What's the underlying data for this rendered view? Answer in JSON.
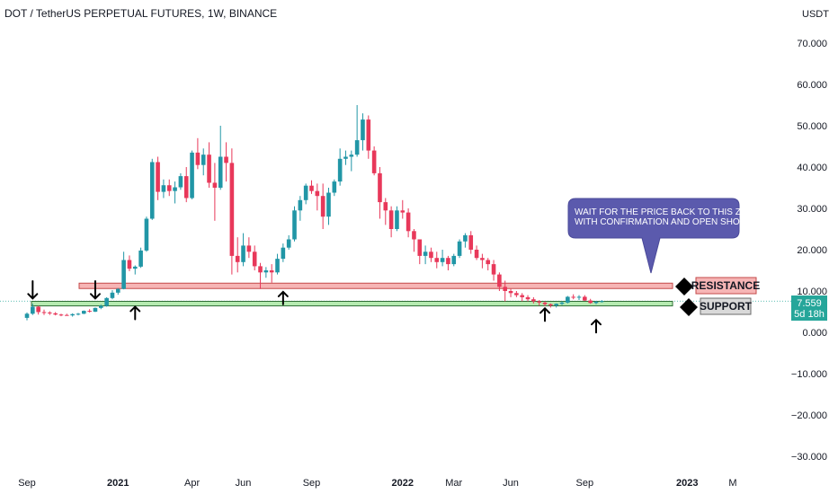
{
  "chart_data": {
    "type": "candlestick",
    "title": "DOT / TetherUS PERPETUAL FUTURES, 1W, BINANCE",
    "currency": "USDT",
    "ylim": [
      -32,
      78
    ],
    "y_ticks": [
      "70.000",
      "60.000",
      "50.000",
      "40.000",
      "30.000",
      "20.000",
      "10.000",
      "0.000",
      "−10.000",
      "−20.000",
      "−30.000"
    ],
    "y_tick_values": [
      70,
      60,
      50,
      40,
      30,
      20,
      10,
      0,
      -10,
      -20,
      -30
    ],
    "x_ticks": [
      "Sep",
      "2021",
      "Apr",
      "Jun",
      "Sep",
      "2022",
      "Mar",
      "Jun",
      "Sep",
      "2023",
      "M"
    ],
    "x_tick_weeks": [
      0,
      16,
      29,
      38,
      50,
      66,
      75,
      85,
      98,
      116,
      124
    ],
    "x_tick_bold": [
      false,
      true,
      false,
      false,
      false,
      true,
      false,
      false,
      false,
      true,
      false
    ],
    "up_color": "#2196a6",
    "down_color": "#e8385a",
    "candles": [
      [
        3.5,
        4.8,
        2.9,
        4.5
      ],
      [
        4.5,
        6.9,
        4.2,
        6.2
      ],
      [
        6.2,
        6.4,
        4.3,
        4.9
      ],
      [
        4.9,
        5.5,
        4.2,
        4.8
      ],
      [
        4.8,
        5.1,
        4.2,
        4.6
      ],
      [
        4.6,
        4.9,
        4.1,
        4.3
      ],
      [
        4.3,
        4.5,
        3.9,
        4.2
      ],
      [
        4.2,
        4.5,
        4.0,
        4.1
      ],
      [
        4.1,
        4.6,
        3.8,
        4.4
      ],
      [
        4.4,
        4.7,
        4.1,
        4.5
      ],
      [
        4.5,
        5.3,
        4.4,
        5.2
      ],
      [
        5.2,
        5.6,
        4.8,
        5.0
      ],
      [
        5.0,
        6.0,
        4.9,
        5.9
      ],
      [
        5.9,
        6.7,
        5.6,
        6.4
      ],
      [
        6.4,
        8.5,
        6.2,
        8.3
      ],
      [
        8.3,
        10.2,
        8.0,
        9.6
      ],
      [
        9.6,
        10.7,
        9.1,
        10.5
      ],
      [
        10.5,
        19.5,
        10.4,
        17.5
      ],
      [
        17.5,
        18.6,
        14.8,
        15.4
      ],
      [
        15.4,
        16.2,
        14.0,
        15.9
      ],
      [
        15.9,
        20.5,
        15.6,
        19.8
      ],
      [
        19.8,
        28.0,
        19.5,
        27.5
      ],
      [
        27.5,
        42.0,
        27.2,
        41.2
      ],
      [
        41.2,
        42.5,
        32.0,
        34.0
      ],
      [
        34.0,
        37.0,
        32.5,
        35.6
      ],
      [
        35.6,
        37.0,
        33.0,
        34.2
      ],
      [
        34.2,
        36.5,
        31.2,
        35.1
      ],
      [
        35.1,
        38.5,
        34.5,
        37.8
      ],
      [
        37.8,
        40.0,
        31.5,
        32.5
      ],
      [
        32.5,
        44.0,
        32.2,
        43.5
      ],
      [
        43.5,
        47.0,
        39.5,
        40.5
      ],
      [
        40.5,
        44.5,
        38.0,
        43.0
      ],
      [
        43.0,
        46.0,
        35.0,
        36.2
      ],
      [
        36.2,
        41.0,
        27.0,
        35.0
      ],
      [
        35.0,
        50.0,
        34.5,
        42.5
      ],
      [
        42.5,
        46.0,
        36.5,
        41.0
      ],
      [
        41.0,
        44.5,
        14.0,
        18.5
      ],
      [
        18.5,
        23.0,
        14.5,
        17.0
      ],
      [
        17.0,
        24.0,
        16.0,
        21.0
      ],
      [
        21.0,
        23.0,
        18.0,
        19.5
      ],
      [
        19.5,
        21.0,
        15.0,
        16.0
      ],
      [
        16.0,
        16.8,
        10.5,
        14.5
      ],
      [
        14.5,
        15.8,
        13.2,
        15.0
      ],
      [
        15.0,
        16.5,
        12.0,
        14.5
      ],
      [
        14.5,
        19.0,
        14.0,
        17.8
      ],
      [
        17.8,
        21.5,
        17.0,
        20.5
      ],
      [
        20.5,
        23.5,
        20.0,
        22.5
      ],
      [
        22.5,
        30.5,
        22.0,
        29.5
      ],
      [
        29.5,
        33.0,
        27.0,
        32.0
      ],
      [
        32.0,
        36.0,
        31.0,
        35.5
      ],
      [
        35.5,
        36.8,
        33.5,
        34.2
      ],
      [
        34.2,
        36.0,
        29.5,
        33.0
      ],
      [
        33.0,
        36.0,
        25.0,
        28.0
      ],
      [
        28.0,
        35.0,
        26.0,
        33.8
      ],
      [
        33.8,
        37.0,
        33.0,
        36.5
      ],
      [
        36.5,
        44.5,
        35.5,
        42.0
      ],
      [
        42.0,
        44.0,
        40.5,
        42.5
      ],
      [
        42.5,
        44.0,
        39.0,
        43.0
      ],
      [
        43.0,
        55.0,
        42.5,
        46.5
      ],
      [
        46.5,
        53.0,
        44.0,
        51.5
      ],
      [
        51.5,
        52.5,
        42.0,
        44.0
      ],
      [
        44.0,
        45.0,
        38.0,
        38.5
      ],
      [
        38.5,
        40.0,
        27.5,
        31.5
      ],
      [
        31.5,
        32.5,
        26.0,
        29.5
      ],
      [
        29.5,
        30.5,
        23.0,
        25.0
      ],
      [
        25.0,
        30.5,
        24.5,
        29.5
      ],
      [
        29.5,
        32.0,
        27.5,
        29.0
      ],
      [
        29.0,
        30.0,
        23.0,
        24.5
      ],
      [
        24.5,
        25.0,
        19.5,
        22.5
      ],
      [
        22.5,
        22.5,
        16.5,
        18.5
      ],
      [
        18.5,
        21.0,
        16.5,
        19.5
      ],
      [
        19.5,
        20.5,
        17.0,
        18.0
      ],
      [
        18.0,
        19.5,
        15.5,
        17.0
      ],
      [
        17.0,
        20.0,
        16.0,
        18.0
      ],
      [
        18.0,
        18.5,
        15.0,
        16.5
      ],
      [
        16.5,
        19.0,
        16.0,
        18.5
      ],
      [
        18.5,
        22.5,
        18.0,
        22.0
      ],
      [
        22.0,
        24.0,
        20.5,
        23.5
      ],
      [
        23.5,
        24.5,
        19.0,
        20.0
      ],
      [
        20.0,
        21.0,
        17.5,
        18.0
      ],
      [
        18.0,
        19.0,
        15.5,
        17.5
      ],
      [
        17.5,
        18.0,
        15.0,
        16.5
      ],
      [
        16.5,
        17.5,
        12.5,
        14.0
      ],
      [
        14.0,
        14.5,
        10.0,
        11.0
      ],
      [
        11.0,
        12.5,
        7.5,
        10.0
      ],
      [
        10.0,
        10.5,
        8.5,
        9.5
      ],
      [
        9.5,
        10.0,
        8.5,
        9.0
      ],
      [
        9.0,
        9.5,
        7.5,
        8.5
      ],
      [
        8.5,
        9.0,
        7.5,
        8.0
      ],
      [
        8.0,
        8.5,
        7.0,
        7.5
      ],
      [
        7.5,
        7.8,
        6.5,
        7.2
      ],
      [
        7.2,
        7.5,
        6.3,
        6.8
      ],
      [
        6.8,
        7.0,
        6.0,
        6.5
      ],
      [
        6.5,
        7.0,
        6.0,
        6.9
      ],
      [
        6.9,
        7.5,
        6.6,
        7.2
      ],
      [
        7.2,
        8.8,
        7.0,
        8.6
      ],
      [
        8.6,
        9.2,
        8.0,
        8.4
      ],
      [
        8.4,
        9.0,
        7.8,
        8.6
      ],
      [
        8.6,
        9.0,
        7.6,
        7.7
      ],
      [
        7.7,
        8.1,
        6.9,
        7.1
      ],
      [
        7.1,
        7.6,
        6.8,
        7.4
      ],
      [
        7.4,
        7.8,
        7.2,
        7.56
      ]
    ],
    "zones": [
      {
        "name": "RESISTANCE",
        "range": [
          10.6,
          11.9
        ],
        "fill": "#f6b5b5",
        "stroke": "#c44a4a"
      },
      {
        "name": "SUPPORT",
        "range": [
          6.4,
          7.5
        ],
        "fill": "#b6ebb1",
        "stroke": "#2f6e36"
      }
    ],
    "annotation": "WAIT FOR THE PRICE BACK TO THIS ZONE WITH CONFIRMATION AND OPEN SHORT",
    "annotation_lines": [
      "WAIT FOR THE PRICE BACK TO THIS ZONE",
      "WITH CONFIRMATION AND OPEN SHORT"
    ],
    "annotation_color": "#5b5aad",
    "down_arrow_weeks": [
      1,
      12
    ],
    "up_arrow_weeks": [
      19,
      45,
      91,
      100
    ],
    "last_price": {
      "value": 7.559,
      "label": "7.559",
      "countdown": "5d 18h",
      "color": "#26a69a"
    }
  }
}
